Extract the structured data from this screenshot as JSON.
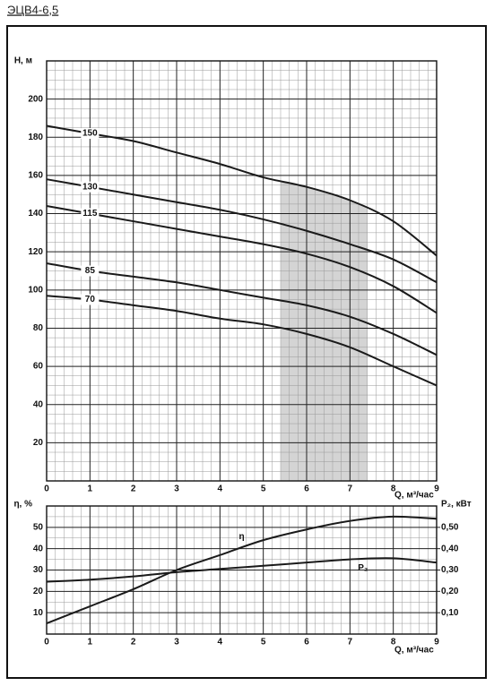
{
  "chart_data": [
    {
      "type": "line",
      "title": "ЭЦВ4-6,5",
      "y_label": "H, м",
      "x_label": "Q, м³/час",
      "x": [
        0,
        1,
        2,
        3,
        4,
        5,
        6,
        7,
        8,
        9
      ],
      "series": [
        {
          "name": "150",
          "color": "#1a1a1a",
          "values": [
            186,
            182,
            178,
            172,
            166,
            159,
            154,
            147,
            136,
            118
          ]
        },
        {
          "name": "130",
          "color": "#1a1a1a",
          "values": [
            158,
            154,
            150,
            146,
            142,
            137,
            131,
            124,
            116,
            104
          ]
        },
        {
          "name": "115",
          "color": "#1a1a1a",
          "values": [
            144,
            140,
            136,
            132,
            128,
            124,
            119,
            112,
            102,
            88
          ]
        },
        {
          "name": "85",
          "color": "#1a1a1a",
          "values": [
            114,
            110,
            107,
            104,
            100,
            96,
            92,
            86,
            77,
            66
          ]
        },
        {
          "name": "70",
          "color": "#1a1a1a",
          "values": [
            97,
            95,
            92,
            89,
            85,
            82,
            77,
            70,
            60,
            50
          ]
        }
      ],
      "working_range": [
        5.4,
        7.4
      ],
      "working_range_color": "#d4d4d4",
      "xlim": [
        0,
        9
      ],
      "xticks": [
        0,
        1,
        2,
        3,
        4,
        5,
        6,
        7,
        8,
        9
      ],
      "ylim": [
        0,
        220
      ],
      "yticks": [
        20,
        40,
        60,
        80,
        100,
        120,
        140,
        160,
        180,
        200
      ],
      "grid": true
    },
    {
      "type": "line",
      "y_label": "η, %",
      "y2_label": "P₂, кВт",
      "x_label": "Q, м³/час",
      "x": [
        0,
        1,
        2,
        3,
        4,
        5,
        6,
        7,
        8,
        9
      ],
      "series": [
        {
          "name": "η",
          "color": "#1a1a1a",
          "values": [
            5,
            13,
            21,
            30,
            37,
            44,
            49,
            53,
            55,
            54
          ]
        },
        {
          "name": "P₂",
          "color": "#1a1a1a",
          "axis": "y2",
          "values": [
            0.245,
            0.255,
            0.27,
            0.29,
            0.305,
            0.32,
            0.335,
            0.35,
            0.355,
            0.335
          ]
        }
      ],
      "xlim": [
        0,
        9
      ],
      "xticks": [
        0,
        1,
        2,
        3,
        4,
        5,
        6,
        7,
        8,
        9
      ],
      "ylim": [
        0,
        60
      ],
      "yticks": [
        10,
        20,
        30,
        40,
        50
      ],
      "y2lim": [
        0,
        0.6
      ],
      "y2ticks": [
        {
          "value": 0.1,
          "label": "0,10"
        },
        {
          "value": 0.2,
          "label": "0,20"
        },
        {
          "value": 0.3,
          "label": "0,30"
        },
        {
          "value": 0.4,
          "label": "0,40"
        },
        {
          "value": 0.5,
          "label": "0,50"
        }
      ],
      "grid": true
    }
  ]
}
